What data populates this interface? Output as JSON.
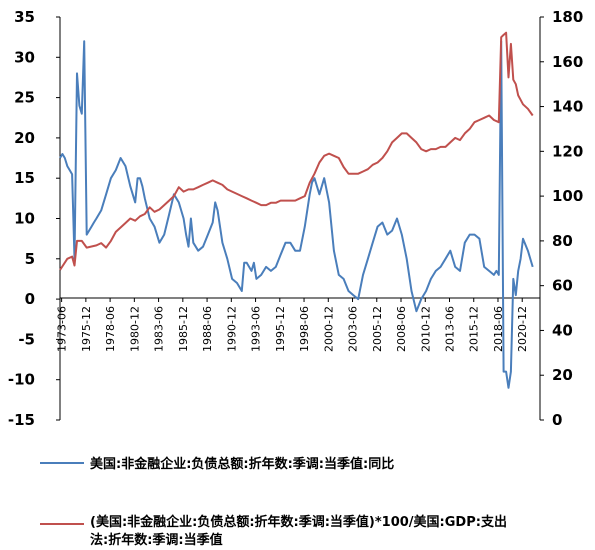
{
  "chart_data": {
    "type": "line",
    "left_axis": {
      "ylim": [
        -15,
        35
      ],
      "ticks": [
        "35",
        "30",
        "25",
        "20",
        "15",
        "10",
        "5",
        "0",
        "-5",
        "-10",
        "-15"
      ]
    },
    "right_axis": {
      "ylim": [
        0,
        180
      ],
      "ticks": [
        "180",
        "160",
        "140",
        "120",
        "100",
        "80",
        "60",
        "40",
        "20",
        "0"
      ]
    },
    "x_ticks": [
      "1973-06",
      "1975-12",
      "1978-06",
      "1980-12",
      "1983-06",
      "1985-12",
      "1988-06",
      "1990-12",
      "1993-06",
      "1995-12",
      "1998-06",
      "2000-12",
      "2003-06",
      "2005-12",
      "2008-06",
      "2010-12",
      "2013-06",
      "2015-12",
      "2018-06",
      "2020-12"
    ],
    "x_range": [
      1973.25,
      2022.75
    ],
    "series": [
      {
        "name": "美国:非金融企业:负债总额:折年数:季调:当季值:同比",
        "axis": "left",
        "color": "#4a7ebb",
        "points": [
          [
            1973.25,
            17.5
          ],
          [
            1973.5,
            18
          ],
          [
            1973.75,
            17.5
          ],
          [
            1974,
            16.5
          ],
          [
            1974.25,
            16
          ],
          [
            1974.5,
            15.5
          ],
          [
            1974.75,
            5
          ],
          [
            1975,
            28
          ],
          [
            1975.25,
            24
          ],
          [
            1975.5,
            23
          ],
          [
            1975.75,
            32
          ],
          [
            1976,
            8
          ],
          [
            1976.25,
            8.5
          ],
          [
            1976.5,
            9
          ],
          [
            1976.75,
            9.5
          ],
          [
            1977,
            10
          ],
          [
            1977.5,
            11
          ],
          [
            1978,
            13
          ],
          [
            1978.5,
            15
          ],
          [
            1979,
            16
          ],
          [
            1979.5,
            17.5
          ],
          [
            1980,
            16.5
          ],
          [
            1980.5,
            14
          ],
          [
            1981,
            12
          ],
          [
            1981.25,
            15
          ],
          [
            1981.5,
            15
          ],
          [
            1981.75,
            14
          ],
          [
            1982,
            12.5
          ],
          [
            1982.5,
            10
          ],
          [
            1983,
            9
          ],
          [
            1983.5,
            7
          ],
          [
            1984,
            8
          ],
          [
            1984.5,
            10.5
          ],
          [
            1985,
            13
          ],
          [
            1985.5,
            12
          ],
          [
            1986,
            10
          ],
          [
            1986.25,
            8
          ],
          [
            1986.5,
            6.5
          ],
          [
            1986.75,
            10
          ],
          [
            1987,
            7
          ],
          [
            1987.5,
            6
          ],
          [
            1988,
            6.5
          ],
          [
            1988.5,
            8
          ],
          [
            1989,
            9.5
          ],
          [
            1989.25,
            12
          ],
          [
            1989.5,
            11
          ],
          [
            1990,
            7
          ],
          [
            1990.5,
            5
          ],
          [
            1991,
            2.5
          ],
          [
            1991.5,
            2
          ],
          [
            1992,
            1
          ],
          [
            1992.25,
            4.5
          ],
          [
            1992.5,
            4.5
          ],
          [
            1993,
            3.5
          ],
          [
            1993.25,
            4.5
          ],
          [
            1993.5,
            2.5
          ],
          [
            1994,
            3
          ],
          [
            1994.5,
            4
          ],
          [
            1995,
            3.5
          ],
          [
            1995.5,
            4
          ],
          [
            1996,
            5.5
          ],
          [
            1996.5,
            7
          ],
          [
            1997,
            7
          ],
          [
            1997.5,
            6
          ],
          [
            1998,
            6
          ],
          [
            1998.5,
            9
          ],
          [
            1999,
            13
          ],
          [
            1999.25,
            14.5
          ],
          [
            1999.5,
            15
          ],
          [
            2000,
            13
          ],
          [
            2000.5,
            15
          ],
          [
            2001,
            12
          ],
          [
            2001.5,
            6
          ],
          [
            2002,
            3
          ],
          [
            2002.5,
            2.5
          ],
          [
            2003,
            1
          ],
          [
            2003.5,
            0.5
          ],
          [
            2004,
            0
          ],
          [
            2004.5,
            3
          ],
          [
            2005,
            5
          ],
          [
            2005.5,
            7
          ],
          [
            2006,
            9
          ],
          [
            2006.5,
            9.5
          ],
          [
            2007,
            8
          ],
          [
            2007.5,
            8.5
          ],
          [
            2008,
            10
          ],
          [
            2008.5,
            8
          ],
          [
            2009,
            5
          ],
          [
            2009.5,
            1
          ],
          [
            2010,
            -1.5
          ],
          [
            2010.5,
            0
          ],
          [
            2011,
            1
          ],
          [
            2011.5,
            2.5
          ],
          [
            2012,
            3.5
          ],
          [
            2012.5,
            4
          ],
          [
            2013,
            5
          ],
          [
            2013.5,
            6
          ],
          [
            2014,
            4
          ],
          [
            2014.5,
            3.5
          ],
          [
            2015,
            7
          ],
          [
            2015.5,
            8
          ],
          [
            2016,
            8
          ],
          [
            2016.5,
            7.5
          ],
          [
            2017,
            4
          ],
          [
            2017.5,
            3.5
          ],
          [
            2018,
            3
          ],
          [
            2018.25,
            3.5
          ],
          [
            2018.5,
            3
          ],
          [
            2018.75,
            32
          ],
          [
            2019,
            -9
          ],
          [
            2019.25,
            -9
          ],
          [
            2019.5,
            -11
          ],
          [
            2019.75,
            -9
          ],
          [
            2020,
            2.5
          ],
          [
            2020.25,
            0.5
          ],
          [
            2020.5,
            3.5
          ],
          [
            2020.75,
            5
          ],
          [
            2021,
            7.5
          ],
          [
            2021.5,
            6
          ],
          [
            2022,
            4
          ]
        ]
      },
      {
        "name": "(美国:非金融企业:负债总额:折年数:季调:当季值)*100/美国:GDP:支出法:折年数:季调:当季值",
        "axis": "right",
        "color": "#c0504d",
        "points": [
          [
            1973.25,
            67
          ],
          [
            1974,
            72
          ],
          [
            1974.5,
            73
          ],
          [
            1974.75,
            69
          ],
          [
            1975,
            80
          ],
          [
            1975.5,
            80
          ],
          [
            1976,
            77
          ],
          [
            1977,
            78
          ],
          [
            1977.5,
            79
          ],
          [
            1978,
            77
          ],
          [
            1978.5,
            80
          ],
          [
            1979,
            84
          ],
          [
            1980,
            88
          ],
          [
            1980.5,
            90
          ],
          [
            1981,
            89
          ],
          [
            1981.5,
            91
          ],
          [
            1982,
            92
          ],
          [
            1982.5,
            95
          ],
          [
            1983,
            93
          ],
          [
            1983.5,
            94
          ],
          [
            1984,
            96
          ],
          [
            1984.5,
            98
          ],
          [
            1985,
            100
          ],
          [
            1985.5,
            104
          ],
          [
            1986,
            102
          ],
          [
            1986.5,
            103
          ],
          [
            1987,
            103
          ],
          [
            1987.5,
            104
          ],
          [
            1988,
            105
          ],
          [
            1988.5,
            106
          ],
          [
            1989,
            107
          ],
          [
            1989.5,
            106
          ],
          [
            1990,
            105
          ],
          [
            1990.5,
            103
          ],
          [
            1991,
            102
          ],
          [
            1991.5,
            101
          ],
          [
            1992,
            100
          ],
          [
            1992.5,
            99
          ],
          [
            1993,
            98
          ],
          [
            1993.5,
            97
          ],
          [
            1994,
            96
          ],
          [
            1994.5,
            96
          ],
          [
            1995,
            97
          ],
          [
            1995.5,
            97
          ],
          [
            1996,
            98
          ],
          [
            1996.5,
            98
          ],
          [
            1997,
            98
          ],
          [
            1997.5,
            98
          ],
          [
            1998,
            99
          ],
          [
            1998.5,
            100
          ],
          [
            1999,
            106
          ],
          [
            1999.5,
            110
          ],
          [
            2000,
            115
          ],
          [
            2000.5,
            118
          ],
          [
            2001,
            119
          ],
          [
            2001.5,
            118
          ],
          [
            2002,
            117
          ],
          [
            2002.5,
            113
          ],
          [
            2003,
            110
          ],
          [
            2003.5,
            110
          ],
          [
            2004,
            110
          ],
          [
            2004.5,
            111
          ],
          [
            2005,
            112
          ],
          [
            2005.5,
            114
          ],
          [
            2006,
            115
          ],
          [
            2006.5,
            117
          ],
          [
            2007,
            120
          ],
          [
            2007.5,
            124
          ],
          [
            2008,
            126
          ],
          [
            2008.5,
            128
          ],
          [
            2009,
            128
          ],
          [
            2009.5,
            126
          ],
          [
            2010,
            124
          ],
          [
            2010.5,
            121
          ],
          [
            2011,
            120
          ],
          [
            2011.5,
            121
          ],
          [
            2012,
            121
          ],
          [
            2012.5,
            122
          ],
          [
            2013,
            122
          ],
          [
            2013.5,
            124
          ],
          [
            2014,
            126
          ],
          [
            2014.5,
            125
          ],
          [
            2015,
            128
          ],
          [
            2015.5,
            130
          ],
          [
            2016,
            133
          ],
          [
            2016.5,
            134
          ],
          [
            2017,
            135
          ],
          [
            2017.5,
            136
          ],
          [
            2018,
            134
          ],
          [
            2018.5,
            133
          ],
          [
            2018.75,
            171
          ],
          [
            2019,
            172
          ],
          [
            2019.25,
            173
          ],
          [
            2019.5,
            153
          ],
          [
            2019.75,
            168
          ],
          [
            2020,
            152
          ],
          [
            2020.25,
            150
          ],
          [
            2020.5,
            145
          ],
          [
            2020.75,
            143
          ],
          [
            2021,
            141
          ],
          [
            2021.5,
            139
          ],
          [
            2022,
            136
          ]
        ]
      }
    ]
  },
  "legend": {
    "item1": "美国:非金融企业:负债总额:折年数:季调:当季值:同比",
    "item2_line1": "(美国:非金融企业:负债总额:折年数:季调:当季值)*100/美国:GDP:支出",
    "item2_line2": "法:折年数:季调:当季值"
  }
}
